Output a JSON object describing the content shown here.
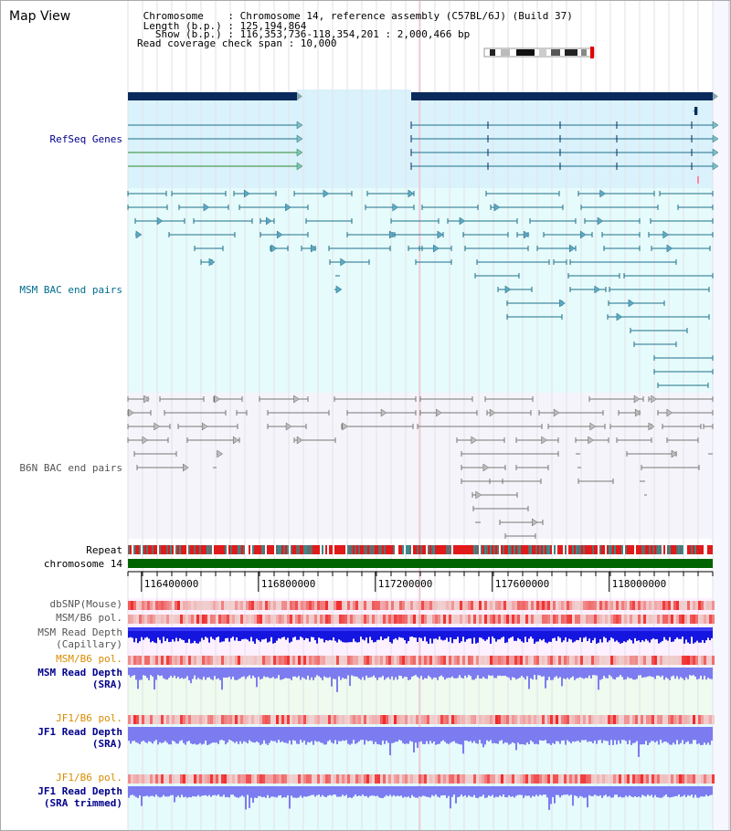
{
  "page": {
    "title": "Map View"
  },
  "header": {
    "line1": " Chromosome    : Chromosome 14, reference assembly (C57BL/6J) (Build 37)",
    "line2": " Length (b.p.) : 125,194,864",
    "line3": "   Show (b.p.) : 116,353,736-118,354,201 : 2,000,466 bp",
    "line4": "Read coverage check span : 10,000"
  },
  "tracks": {
    "refseq": "RefSeq Genes",
    "msm_bac": "MSM BAC end pairs",
    "b6n_bac": "B6N BAC end pairs",
    "repeat": "Repeat",
    "chromosome": "chromosome 14",
    "dbsnp": "dbSNP(Mouse)",
    "msm_b6_pol_1": "MSM/B6 pol.",
    "msm_read_depth_cap_1": "MSM Read Depth",
    "msm_read_depth_cap_2": "(Capillary)",
    "msm_b6_pol_2": "MSM/B6 pol.",
    "msm_read_depth_sra_1": "MSM Read Depth",
    "msm_read_depth_sra_2": "(SRA)",
    "jf1_b6_pol_1": "JF1/B6 pol.",
    "jf1_read_depth_sra_1": "JF1 Read Depth",
    "jf1_read_depth_sra_2": "(SRA)",
    "jf1_b6_pol_2": "JF1/B6 pol.",
    "jf1_read_depth_trim_1": "JF1 Read Depth",
    "jf1_read_depth_trim_2": "(SRA trimmed)"
  },
  "axis": {
    "ticks": [
      116400000,
      116800000,
      117200000,
      117600000,
      118000000
    ],
    "range": [
      116353736,
      118354201
    ]
  },
  "colors": {
    "label_blue": "#00008b",
    "label_teal": "#006b8f",
    "label_gray": "#555555",
    "label_orange": "#d98c00",
    "gene_dark": "#0b2a5c",
    "bac_msm": "#1f6f8b",
    "bac_b6n": "#777777",
    "chromosome": "#006400"
  }
}
